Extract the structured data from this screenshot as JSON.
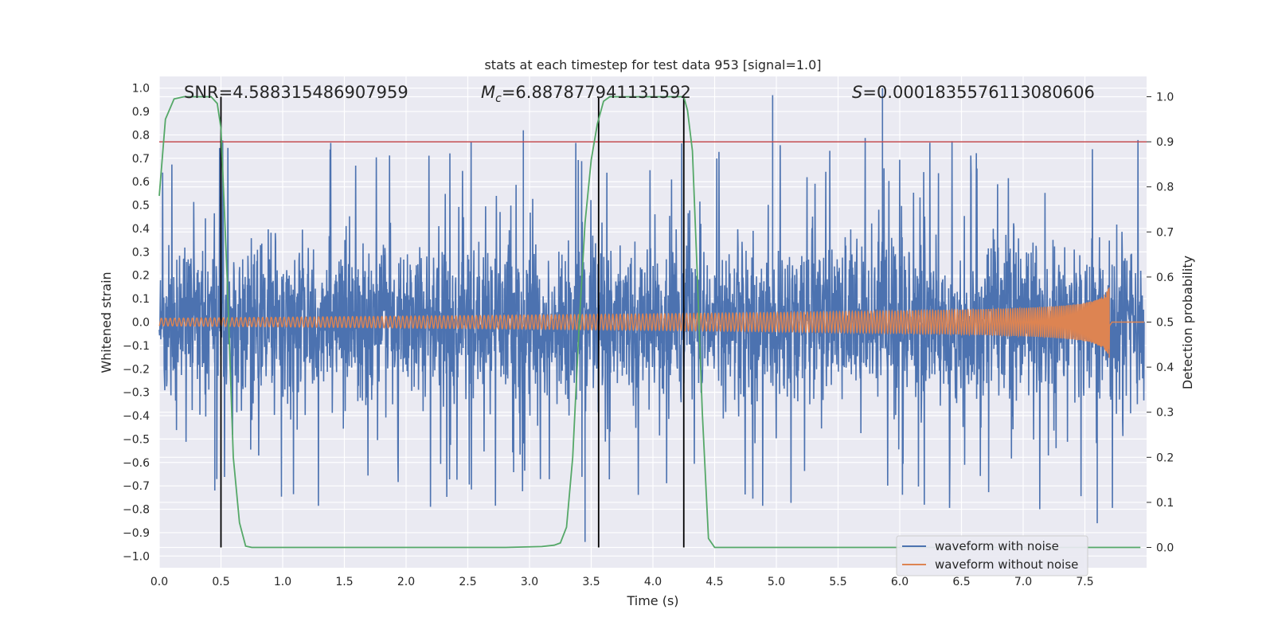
{
  "chart_data": {
    "type": "line",
    "title": "stats at each timestep for test data 953 [signal=1.0]",
    "xlabel": "Time (s)",
    "ylabel": "Whitened strain",
    "y2label": "Detection probability",
    "xlim": [
      0.0,
      8.0
    ],
    "ylim": [
      -1.05,
      1.05
    ],
    "y2lim": [
      -0.045,
      1.045
    ],
    "xticks": [
      "0.0",
      "0.5",
      "1.0",
      "1.5",
      "2.0",
      "2.5",
      "3.0",
      "3.5",
      "4.0",
      "4.5",
      "5.0",
      "5.5",
      "6.0",
      "6.5",
      "7.0",
      "7.5"
    ],
    "yticks": [
      "1.0",
      "0.9",
      "0.8",
      "0.7",
      "0.6",
      "0.5",
      "0.4",
      "0.3",
      "0.2",
      "0.1",
      "0.0",
      "−0.1",
      "−0.2",
      "−0.3",
      "−0.4",
      "−0.5",
      "−0.6",
      "−0.7",
      "−0.8",
      "−0.9",
      "−1.0"
    ],
    "y2ticks": [
      "1.0",
      "0.9",
      "0.8",
      "0.7",
      "0.6",
      "0.5",
      "0.4",
      "0.3",
      "0.2",
      "0.1",
      "0.0"
    ],
    "grid": true,
    "legend_position": "lower-right",
    "annotations": {
      "snr": "SNR=4.588315486907959",
      "mc": "=6.887877941131592",
      "mc_symbol": "M",
      "mc_sub": "c",
      "s": "=0.0001835576113080606",
      "s_symbol": "S"
    },
    "series": [
      {
        "name": "waveform with noise",
        "axis": "left",
        "color": "#4c72b0",
        "description_kind": "noise",
        "typical_range": [
          -0.35,
          0.35
        ],
        "peak_max": 1.0,
        "peak_min": -0.94
      },
      {
        "name": "waveform without noise",
        "axis": "left",
        "color": "#dd8452",
        "description_kind": "chirp",
        "t_start": 0.0,
        "t_merge": 7.7,
        "amp_start": 0.01,
        "amp_peak": 0.14
      },
      {
        "axis": "right",
        "color": "#55a868",
        "x": [
          0.0,
          0.05,
          0.12,
          0.2,
          0.3,
          0.42,
          0.47,
          0.5,
          0.55,
          0.6,
          0.65,
          0.7,
          0.75,
          1.0,
          2.0,
          2.8,
          3.1,
          3.2,
          3.25,
          3.3,
          3.35,
          3.4,
          3.45,
          3.5,
          3.55,
          3.6,
          3.65,
          4.0,
          4.25,
          4.28,
          4.32,
          4.36,
          4.4,
          4.45,
          4.5,
          4.6,
          5.0,
          6.0,
          7.0,
          7.95
        ],
        "values": [
          0.78,
          0.95,
          0.995,
          1.0,
          1.0,
          1.0,
          0.985,
          0.93,
          0.6,
          0.2,
          0.055,
          0.003,
          0.0,
          0.0,
          0.0,
          0.0,
          0.002,
          0.005,
          0.01,
          0.045,
          0.2,
          0.48,
          0.72,
          0.86,
          0.94,
          0.99,
          1.0,
          1.0,
          1.0,
          0.97,
          0.88,
          0.6,
          0.3,
          0.02,
          0.0,
          0.0,
          0.0,
          0.0,
          0.0,
          0.0
        ]
      }
    ],
    "threshold": {
      "value": 0.9,
      "axis": "right",
      "color": "#c44e52"
    },
    "vlines": [
      0.5,
      3.56,
      4.25
    ],
    "vline_color": "#000000"
  }
}
